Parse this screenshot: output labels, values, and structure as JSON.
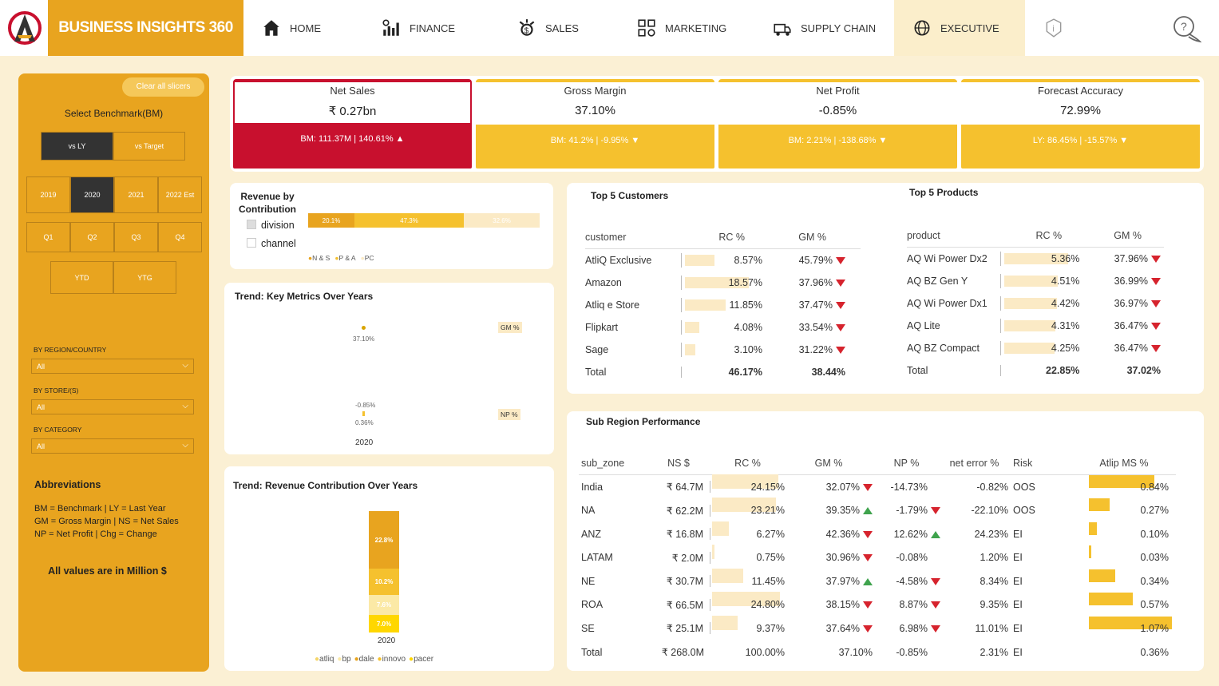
{
  "brand": "BUSINESS INSIGHTS 360",
  "nav": [
    "HOME",
    "FINANCE",
    "SALES",
    "MARKETING",
    "SUPPLY CHAIN",
    "EXECUTIVE"
  ],
  "sidebar": {
    "clear": "Clear all slicers",
    "bm_title": "Select Benchmark(BM)",
    "bm": [
      "vs LY",
      "vs Target"
    ],
    "years": [
      "2019",
      "2020",
      "2021",
      "2022 Est"
    ],
    "quarters": [
      "Q1",
      "Q2",
      "Q3",
      "Q4"
    ],
    "ytd": [
      "YTD",
      "YTG"
    ],
    "region_label": "BY REGION/COUNTRY",
    "store_label": "BY STORE/(S)",
    "cat_label": "BY CATEGORY",
    "all": "All",
    "abbr_title": "Abbreviations",
    "abbr": [
      "BM = Benchmark | LY = Last Year",
      "GM = Gross Margin | NS = Net Sales",
      "NP = Net Profit | Chg = Change"
    ],
    "note": "All values are in Million $"
  },
  "kpis": [
    {
      "title": "Net Sales",
      "value": "₹ 0.27bn",
      "bm": "BM: 111.37M | 140.61% ▲"
    },
    {
      "title": "Gross Margin",
      "value": "37.10%",
      "bm": "BM: 41.2% | -9.95% ▼"
    },
    {
      "title": "Net Profit",
      "value": "-0.85%",
      "bm": "BM: 2.21% | -138.68% ▼"
    },
    {
      "title": "Forecast Accuracy",
      "value": "72.99%",
      "bm": "LY: 86.45% | -15.57% ▼"
    }
  ],
  "rev_contrib": {
    "title1": "Revenue by",
    "title2": "Contribution",
    "opt1": "division",
    "opt2": "channel",
    "segs": [
      "20.1%",
      "47.3%",
      "32.6%"
    ],
    "legend": [
      "N & S",
      "P & A",
      "PC"
    ]
  },
  "trend_metrics": {
    "title": "Trend: Key Metrics Over Years",
    "gm": "GM %",
    "np": "NP %",
    "v1": "37.10%",
    "v2": "-0.85%",
    "v3": "0.36%",
    "year": "2020"
  },
  "trend_rev": {
    "title": "Trend: Revenue Contribution Over Years",
    "segs": [
      "22.8%",
      "10.2%",
      "7.6%",
      "7.0%"
    ],
    "year": "2020",
    "legend": [
      "atliq",
      "bp",
      "dale",
      "innovo",
      "pacer"
    ]
  },
  "customers": {
    "title": "Top 5 Customers",
    "h": [
      "customer",
      "RC %",
      "GM %"
    ],
    "rows": [
      [
        "AtliQ Exclusive",
        "8.57%",
        "45.79%"
      ],
      [
        "Amazon",
        "18.57%",
        "37.96%"
      ],
      [
        "Atliq e Store",
        "11.85%",
        "37.47%"
      ],
      [
        "Flipkart",
        "4.08%",
        "33.54%"
      ],
      [
        "Sage",
        "3.10%",
        "31.22%"
      ]
    ],
    "total": [
      "Total",
      "46.17%",
      "38.44%"
    ]
  },
  "products": {
    "title": "Top 5 Products",
    "h": [
      "product",
      "RC %",
      "GM %"
    ],
    "rows": [
      [
        "AQ Wi Power Dx2",
        "5.36%",
        "37.96%"
      ],
      [
        "AQ BZ Gen Y",
        "4.51%",
        "36.99%"
      ],
      [
        "AQ Wi Power Dx1",
        "4.42%",
        "36.97%"
      ],
      [
        "AQ Lite",
        "4.31%",
        "36.47%"
      ],
      [
        "AQ BZ Compact",
        "4.25%",
        "36.47%"
      ]
    ],
    "total": [
      "Total",
      "22.85%",
      "37.02%"
    ]
  },
  "subregion": {
    "title": "Sub Region Performance",
    "h": [
      "sub_zone",
      "NS $",
      "RC %",
      "GM %",
      "NP %",
      "net error %",
      "Risk",
      "Atlip MS %"
    ],
    "rows": [
      [
        "India",
        "₹ 64.7M",
        "24.15%",
        "32.07%",
        "-14.73%",
        "-0.82%",
        "OOS",
        "0.84%"
      ],
      [
        "NA",
        "₹ 62.2M",
        "23.21%",
        "39.35%",
        "-1.79%",
        "-22.10%",
        "OOS",
        "0.27%"
      ],
      [
        "ANZ",
        "₹ 16.8M",
        "6.27%",
        "42.36%",
        "12.62%",
        "24.23%",
        "EI",
        "0.10%"
      ],
      [
        "LATAM",
        "₹ 2.0M",
        "0.75%",
        "30.96%",
        "-0.08%",
        "1.20%",
        "EI",
        "0.03%"
      ],
      [
        "NE",
        "₹ 30.7M",
        "11.45%",
        "37.97%",
        "-4.58%",
        "8.34%",
        "EI",
        "0.34%"
      ],
      [
        "ROA",
        "₹ 66.5M",
        "24.80%",
        "38.15%",
        "8.87%",
        "9.35%",
        "EI",
        "0.57%"
      ],
      [
        "SE",
        "₹ 25.1M",
        "9.37%",
        "37.64%",
        "6.98%",
        "11.01%",
        "EI",
        "1.07%"
      ]
    ],
    "total": [
      "Total",
      "₹ 268.0M",
      "100.00%",
      "37.10%",
      "-0.85%",
      "2.31%",
      "EI",
      "0.36%"
    ]
  }
}
